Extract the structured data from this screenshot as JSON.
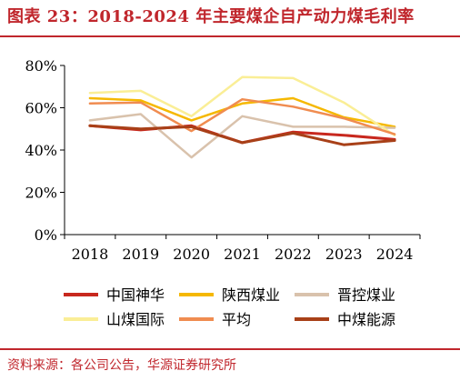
{
  "header": {
    "title": "图表 23：2018-2024 年主要煤企自产动力煤毛利率"
  },
  "footer": {
    "source": "资料来源：各公司公告，华源证券研究所"
  },
  "chart_data": {
    "type": "line",
    "title": "图表 23：2018-2024 年主要煤企自产动力煤毛利率",
    "xlabel": "",
    "ylabel": "",
    "x": [
      "2018",
      "2019",
      "2020",
      "2021",
      "2022",
      "2023",
      "2024"
    ],
    "ylim": [
      0,
      80
    ],
    "yticks": [
      0,
      20,
      40,
      60,
      80
    ],
    "ytick_labels": [
      "0%",
      "20%",
      "40%",
      "60%",
      "80%"
    ],
    "grid": false,
    "legend_position": "bottom",
    "series": [
      {
        "name": "中国神华",
        "color": "#c8281e",
        "values": [
          51.5,
          49.5,
          51.5,
          43.5,
          48.5,
          47,
          45
        ]
      },
      {
        "name": "陕西煤业",
        "color": "#f5b800",
        "values": [
          64.5,
          63.5,
          54,
          62,
          64.5,
          55.5,
          51
        ]
      },
      {
        "name": "晋控煤业",
        "color": "#d9c2ac",
        "values": [
          54,
          57,
          36.5,
          56,
          51,
          51,
          50.5
        ]
      },
      {
        "name": "山煤国际",
        "color": "#faee96",
        "values": [
          67,
          68,
          56,
          74.5,
          74,
          62.5,
          47
        ]
      },
      {
        "name": "平均",
        "color": "#f08c50",
        "values": [
          62,
          62.5,
          49,
          64,
          60.5,
          55,
          47.5
        ]
      },
      {
        "name": "中煤能源",
        "color": "#a84018",
        "values": [
          51.5,
          50,
          51,
          43.5,
          48,
          42.5,
          44.5
        ]
      }
    ]
  }
}
